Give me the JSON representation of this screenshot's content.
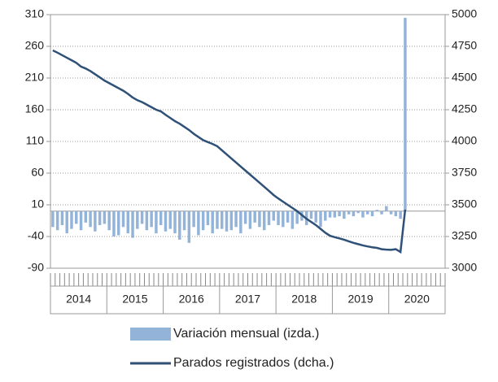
{
  "chart_data": {
    "type": "bar-line",
    "x": [
      0,
      1,
      2,
      3,
      4,
      5,
      6,
      7,
      8,
      9,
      10,
      11,
      12,
      13,
      14,
      15,
      16,
      17,
      18,
      19,
      20,
      21,
      22,
      23,
      24,
      25,
      26,
      27,
      28,
      29,
      30,
      31,
      32,
      33,
      34,
      35,
      36,
      37,
      38,
      39,
      40,
      41,
      42,
      43,
      44,
      45,
      46,
      47,
      48,
      49,
      50,
      51,
      52,
      53,
      54,
      55,
      56,
      57,
      58,
      59,
      60,
      61,
      62,
      63,
      64,
      65,
      66,
      67,
      68,
      69,
      70,
      71,
      72,
      73,
      74,
      75
    ],
    "xlim": [
      -0.5,
      83.5
    ],
    "xticks": [
      {
        "value": 5.5,
        "label": "2014"
      },
      {
        "value": 17.5,
        "label": "2015"
      },
      {
        "value": 29.5,
        "label": "2016"
      },
      {
        "value": 41.5,
        "label": "2017"
      },
      {
        "value": 53.5,
        "label": "2018"
      },
      {
        "value": 65.5,
        "label": "2019"
      },
      {
        "value": 77.5,
        "label": "2020"
      }
    ],
    "ylim": [
      -90,
      310
    ],
    "yticks": [
      -90,
      -40,
      10,
      60,
      110,
      160,
      210,
      260,
      310
    ],
    "y2lim": [
      3000,
      5000
    ],
    "y2ticks": [
      3000,
      3250,
      3500,
      3750,
      4000,
      4250,
      4500,
      4750,
      5000
    ],
    "grid": true,
    "series": [
      {
        "name": "Variación mensual (izda.)",
        "type": "bar",
        "color": "#93b3d9",
        "values": [
          -25,
          -30,
          -22,
          -35,
          -28,
          -20,
          -30,
          -18,
          -25,
          -32,
          -22,
          -20,
          -30,
          -40,
          -38,
          -25,
          -35,
          -42,
          -28,
          -20,
          -30,
          -25,
          -35,
          -22,
          -32,
          -28,
          -35,
          -45,
          -30,
          -50,
          -25,
          -38,
          -30,
          -22,
          -35,
          -28,
          -28,
          -32,
          -30,
          -25,
          -35,
          -20,
          -28,
          -18,
          -25,
          -30,
          -22,
          -15,
          -22,
          -25,
          -18,
          -28,
          -20,
          -15,
          -22,
          -12,
          -18,
          -25,
          -15,
          -10,
          -10,
          -8,
          -12,
          -5,
          -8,
          -3,
          -10,
          -5,
          -8,
          2,
          -5,
          8,
          -5,
          -8,
          -12,
          305
        ]
      },
      {
        "name": "Parados registrados (dcha.)",
        "type": "line",
        "axis": "y2",
        "color": "#2f5077",
        "values": [
          4718,
          4700,
          4680,
          4660,
          4640,
          4620,
          4590,
          4575,
          4555,
          4530,
          4505,
          4480,
          4460,
          4440,
          4420,
          4400,
          4375,
          4346,
          4325,
          4310,
          4290,
          4270,
          4250,
          4237,
          4210,
          4185,
          4160,
          4140,
          4115,
          4090,
          4060,
          4035,
          4010,
          3995,
          3980,
          3962,
          3930,
          3898,
          3866,
          3834,
          3802,
          3770,
          3738,
          3706,
          3674,
          3642,
          3610,
          3577,
          3550,
          3525,
          3500,
          3475,
          3450,
          3420,
          3390,
          3365,
          3340,
          3310,
          3280,
          3256,
          3245,
          3235,
          3225,
          3212,
          3200,
          3190,
          3180,
          3172,
          3165,
          3160,
          3150,
          3147,
          3145,
          3150,
          3128,
          3462
        ]
      }
    ]
  }
}
